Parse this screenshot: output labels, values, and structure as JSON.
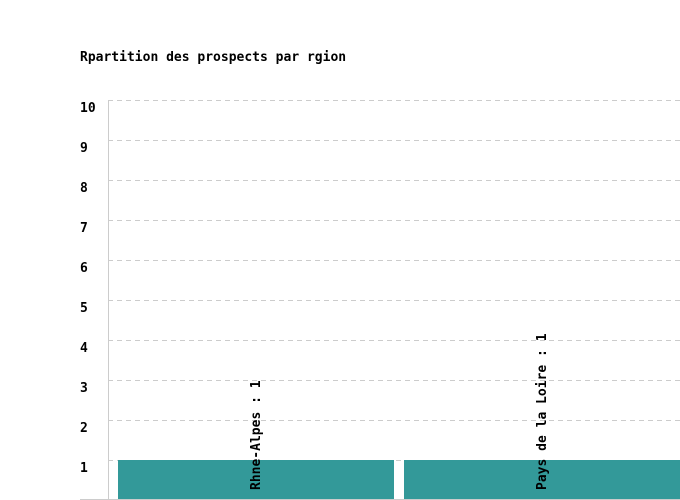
{
  "chart_data": {
    "type": "bar",
    "title": "Rpartition des prospects par rgion",
    "categories": [
      "Rhne-Alpes",
      "Pays de la Loire"
    ],
    "values": [
      1,
      1
    ],
    "data_labels": [
      "Rhne-Alpes : 1",
      "Pays de la Loire : 1"
    ],
    "ylim": [
      0,
      10
    ],
    "yticks": [
      "1",
      "2",
      "3",
      "4",
      "5",
      "6",
      "7",
      "8",
      "9",
      "10"
    ],
    "grid": true,
    "bar_color": "#339999",
    "grid_color": "#cccccc",
    "xlabel": "",
    "ylabel": ""
  }
}
